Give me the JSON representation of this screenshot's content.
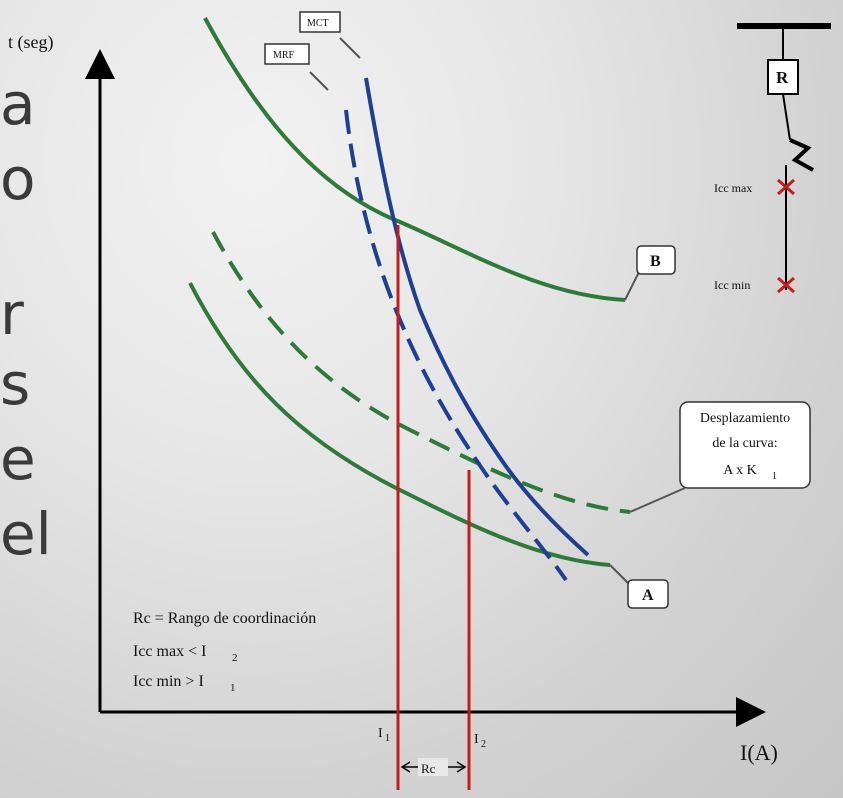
{
  "left_text_fragments": [
    "a",
    "o",
    "r",
    "s",
    "e",
    "el"
  ],
  "axes": {
    "y_label": "t (seg)",
    "x_label": "I(A)"
  },
  "curve_labels": {
    "B": "B",
    "A": "A",
    "mct": "MCT",
    "mrf": "MRF"
  },
  "shift_callout": [
    "Desplazamiento",
    "de la curva:",
    "A x K"
  ],
  "shift_callout_sub": "1",
  "legend": {
    "rc": "Rc = Rango de coordinación",
    "max_main": "Icc max < I",
    "max_sub": "2",
    "min_main": "Icc min > I",
    "min_sub": "1"
  },
  "ticks": {
    "i1_main": "I",
    "i1_sub": "1",
    "i2_main": "I",
    "i2_sub": "2"
  },
  "range_label": "Rc",
  "one_line": {
    "relay": "R",
    "icc_max": "Icc max",
    "icc_min": "Icc min"
  },
  "colors": {
    "green": "#2f7a3b",
    "blue": "#1f3f8f",
    "red": "#c21e1e"
  }
}
